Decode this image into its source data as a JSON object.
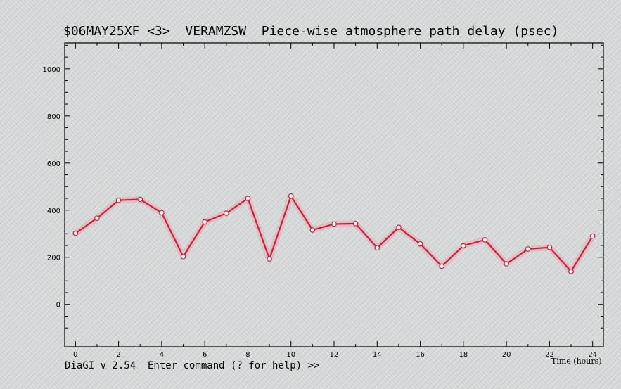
{
  "title": "$06MAY25XF <3>  VERAMZSW  Piece-wise atmosphere path delay (psec)",
  "prompt": "DiaGI v 2.54  Enter command (? for help) >>",
  "colors": {
    "line": "#c8203c",
    "band": "#e8a9b4",
    "marker_fill": "#ffffff",
    "background": "#d9dcdc"
  },
  "chart_data": {
    "type": "line",
    "title": "$06MAY25XF <3>  VERAMZSW  Piece-wise atmosphere path delay (psec)",
    "xlabel": "Time (hours)",
    "ylabel": "",
    "xlim": [
      -0.5,
      24.5
    ],
    "ylim": [
      -180,
      1110
    ],
    "xticks": [
      0,
      2,
      4,
      6,
      8,
      10,
      12,
      14,
      16,
      18,
      20,
      22,
      24
    ],
    "yticks": [
      0,
      200,
      400,
      600,
      800,
      1000
    ],
    "grid": false,
    "series": [
      {
        "x": [
          0,
          1,
          2,
          3,
          4,
          5,
          6,
          7,
          8,
          9,
          10,
          11,
          12,
          13,
          14,
          15,
          16,
          17,
          18,
          19,
          20,
          21,
          22,
          23,
          24
        ],
        "values": [
          302,
          366,
          442,
          446,
          389,
          203,
          350,
          387,
          450,
          193,
          460,
          316,
          341,
          343,
          240,
          327,
          257,
          162,
          249,
          274,
          172,
          235,
          242,
          140,
          290
        ]
      }
    ]
  }
}
